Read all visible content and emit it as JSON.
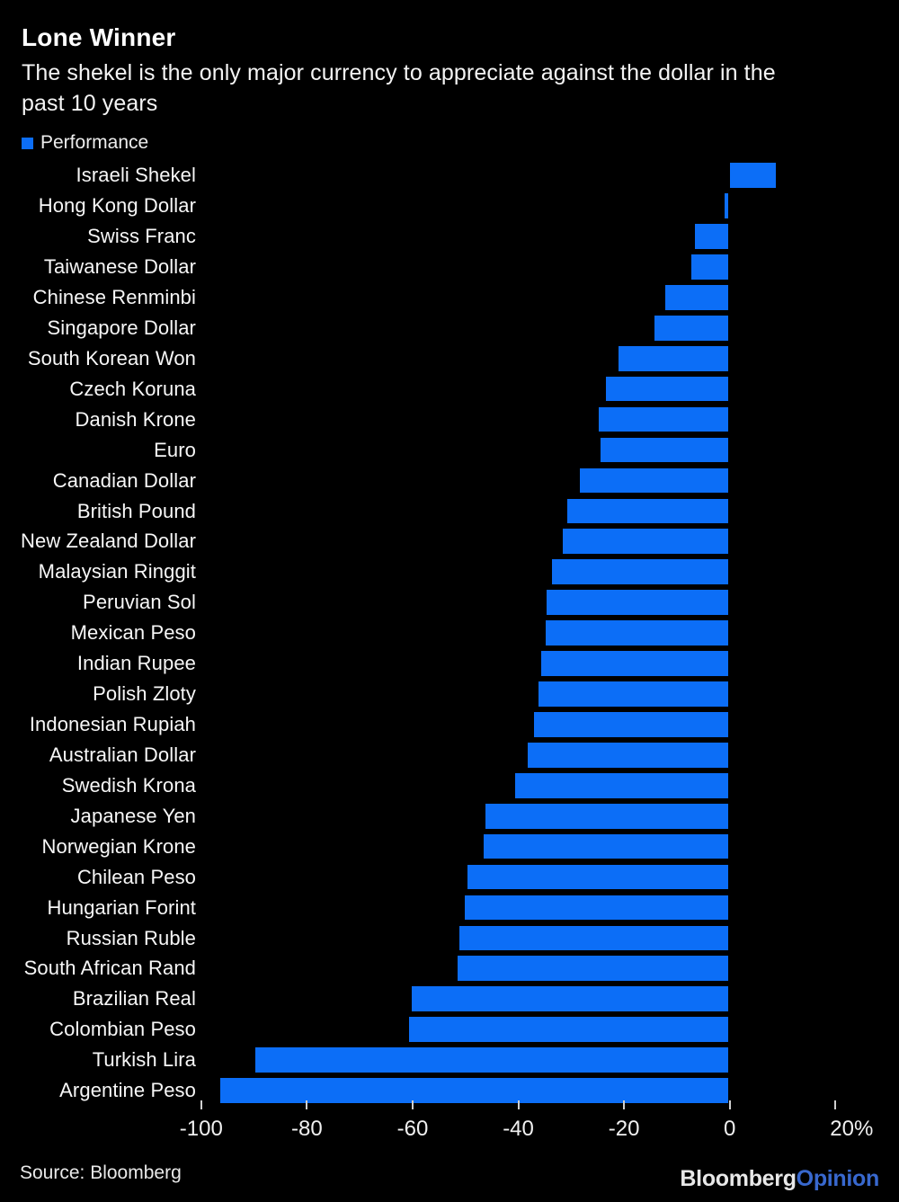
{
  "header": {
    "title": "Lone Winner",
    "subtitle": "The shekel is the only major currency to appreciate against the dollar in the past 10 years",
    "subtitle_lines": [
      "The shekel is the only major currency to appreciate against the dollar in the",
      "past 10 years"
    ]
  },
  "legend": {
    "label": "Performance",
    "swatch_color": "#0c6ef7"
  },
  "chart_data": {
    "type": "bar",
    "orientation": "horizontal",
    "title": "Lone Winner",
    "subtitle": "The shekel is the only major currency to appreciate against the dollar in the past 10 years",
    "legend_entries": [
      "Performance"
    ],
    "unit": "%",
    "grid": false,
    "bar_color": "#0c6ef7",
    "xlim": [
      -100,
      21
    ],
    "categories": [
      "Israeli Shekel",
      "Hong Kong Dollar",
      "Swiss Franc",
      "Taiwanese Dollar",
      "Chinese Renminbi",
      "Singapore Dollar",
      "South Korean Won",
      "Czech Koruna",
      "Danish Krone",
      "Euro",
      "Canadian Dollar",
      "British Pound",
      "New Zealand Dollar",
      "Malaysian Ringgit",
      "Peruvian Sol",
      "Mexican Peso",
      "Indian Rupee",
      "Polish Zloty",
      "Indonesian Rupiah",
      "Australian Dollar",
      "Swedish Krona",
      "Japanese Yen",
      "Norwegian Krone",
      "Chilean Peso",
      "Hungarian Forint",
      "Russian Ruble",
      "South African Rand",
      "Brazilian Real",
      "Colombian Peso",
      "Turkish Lira",
      "Argentine Peso"
    ],
    "values": [
      8.8,
      -1.0,
      -6.6,
      -7.3,
      -12.2,
      -14.3,
      -21.0,
      -23.5,
      -24.7,
      -24.4,
      -28.3,
      -30.8,
      -31.6,
      -33.7,
      -34.7,
      -34.9,
      -35.7,
      -36.2,
      -37.1,
      -38.2,
      -40.6,
      -46.2,
      -46.5,
      -49.6,
      -50.2,
      -51.1,
      -51.5,
      -60.2,
      -60.7,
      -89.7,
      -96.4
    ],
    "x_ticks": [
      {
        "value": -100,
        "label": "-100"
      },
      {
        "value": -80,
        "label": "-80"
      },
      {
        "value": -60,
        "label": "-60"
      },
      {
        "value": -40,
        "label": "-40"
      },
      {
        "value": -20,
        "label": "-20"
      },
      {
        "value": 0,
        "label": "0"
      },
      {
        "value": 20,
        "label": "20%"
      }
    ]
  },
  "footer": {
    "source": "Source: Bloomberg",
    "brand_bloomberg": "Bloomberg",
    "brand_opinion": "Opinion"
  }
}
